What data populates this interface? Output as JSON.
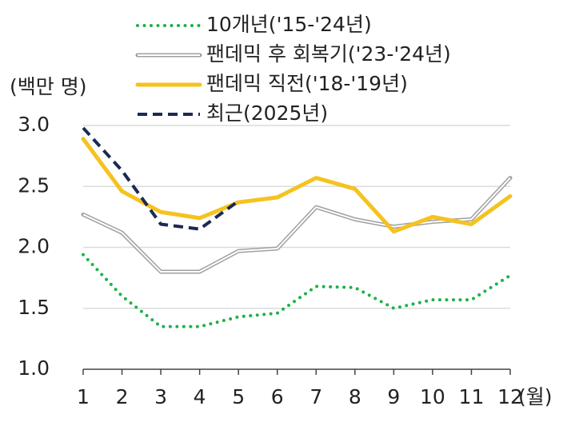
{
  "chart_data": {
    "type": "line",
    "y_label": "(백만 명)",
    "x_label": "(월)",
    "categories": [
      "1",
      "2",
      "3",
      "4",
      "5",
      "6",
      "7",
      "8",
      "9",
      "10",
      "11",
      "12"
    ],
    "series": [
      {
        "name": "10개년('15-'24년)",
        "color": "#1fb04a",
        "style": "dotted",
        "values": [
          1.94,
          1.6,
          1.35,
          1.35,
          1.43,
          1.46,
          1.68,
          1.67,
          1.5,
          1.57,
          1.57,
          1.77
        ]
      },
      {
        "name": "팬데믹 후 회복기('23-'24년)",
        "color": "#a0a0a0",
        "style": "double",
        "values": [
          2.27,
          2.12,
          1.8,
          1.8,
          1.97,
          1.99,
          2.33,
          2.23,
          2.17,
          2.21,
          2.23,
          2.57
        ]
      },
      {
        "name": "팬데믹 직전('18-'19년)",
        "color": "#f5c220",
        "style": "solid",
        "values": [
          2.89,
          2.46,
          2.29,
          2.24,
          2.37,
          2.41,
          2.57,
          2.48,
          2.13,
          2.25,
          2.19,
          2.42
        ]
      },
      {
        "name": "최근(2025년)",
        "color": "#1a2a55",
        "style": "dashed",
        "values": [
          2.98,
          2.63,
          2.19,
          2.15,
          2.38,
          null,
          null,
          null,
          null,
          null,
          null,
          null
        ]
      }
    ],
    "ylim": [
      1.0,
      3.0
    ],
    "yticks": [
      {
        "value": 1,
        "label": "1.0"
      },
      {
        "value": 1.5,
        "label": "1.5"
      },
      {
        "value": 2,
        "label": "2.0"
      },
      {
        "value": 2.5,
        "label": "2.5"
      },
      {
        "value": 3,
        "label": "3.0"
      }
    ],
    "grid": true
  }
}
